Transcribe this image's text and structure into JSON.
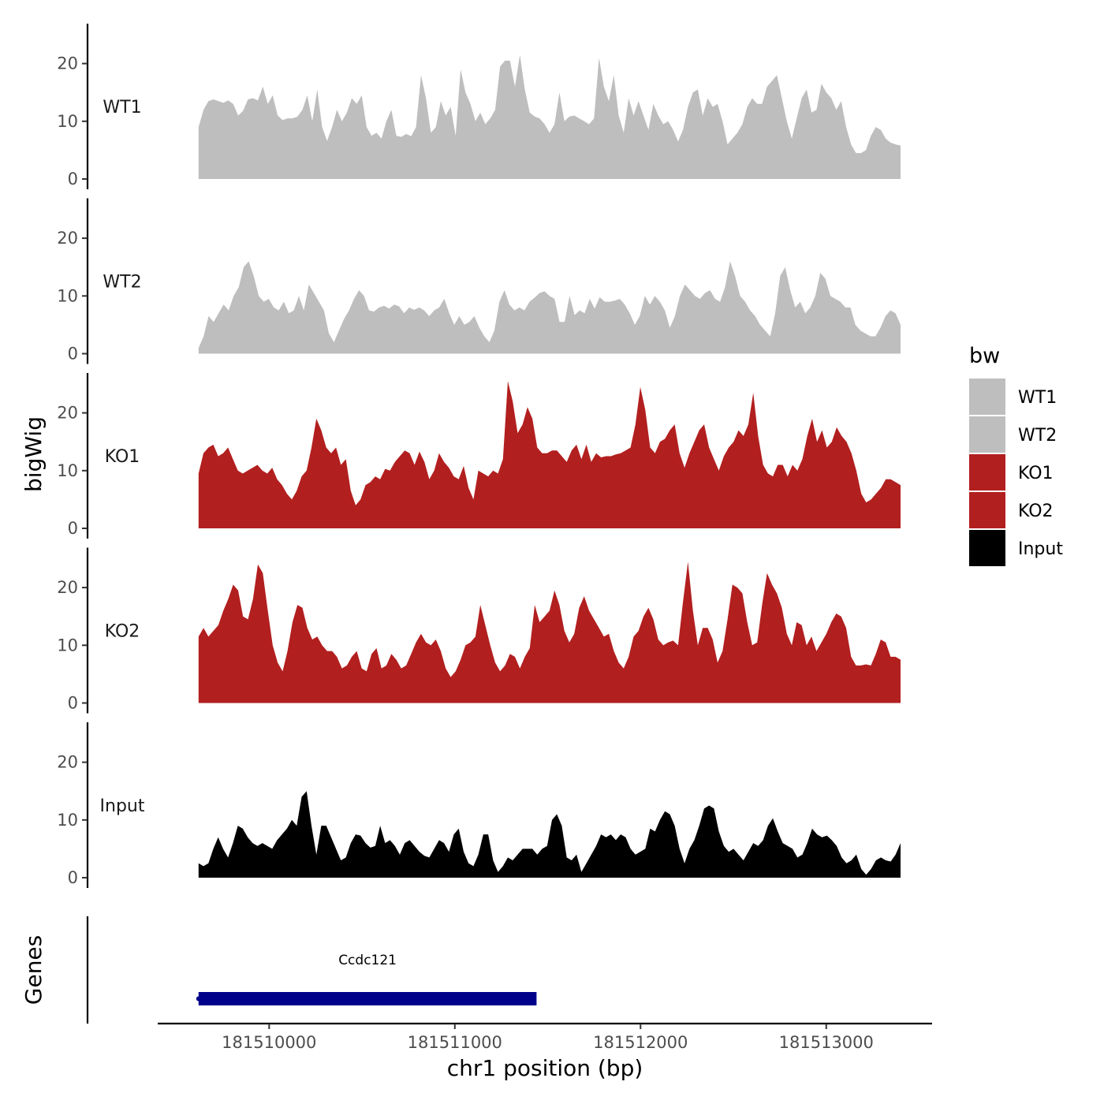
{
  "chart_data": {
    "type": "area",
    "ylabel": "bigWig",
    "xlabel": "chr1 position (bp)",
    "xlim": [
      181509400,
      181513570
    ],
    "x_range": [
      181509620,
      181513400
    ],
    "ylim": [
      0,
      27
    ],
    "y_ticks": [
      0,
      10,
      20
    ],
    "x_ticks": [
      181510000,
      181511000,
      181512000,
      181513000
    ],
    "x_tick_labels": [
      "181510000",
      "181511000",
      "181512000",
      "181513000"
    ],
    "genes_label": "Genes",
    "legend": {
      "title": "bw",
      "entries": [
        {
          "label": "WT1",
          "color": "#bebebe"
        },
        {
          "label": "WT2",
          "color": "#bebebe"
        },
        {
          "label": "KO1",
          "color": "#b21f1f"
        },
        {
          "label": "KO2",
          "color": "#b21f1f"
        },
        {
          "label": "Input",
          "color": "#000000"
        }
      ]
    },
    "series": [
      {
        "name": "WT1",
        "color": "#bebebe",
        "values": [
          9,
          12,
          13.5,
          13.8,
          13.5,
          13.2,
          13.6,
          13,
          11,
          11.8,
          13.8,
          14,
          13.6,
          16,
          13,
          14.5,
          11,
          10.2,
          10.5,
          10.5,
          10.8,
          12,
          14.5,
          10,
          15.5,
          9,
          6.6,
          9,
          12,
          10,
          11.5,
          14,
          13,
          14.5,
          9,
          7.5,
          8,
          7,
          10,
          12,
          7.5,
          7.3,
          7.8,
          7.4,
          9,
          18,
          14,
          8,
          9,
          13.5,
          11,
          12.5,
          7.5,
          19,
          15,
          13,
          10,
          11.5,
          9.5,
          10.5,
          12,
          19.5,
          20.5,
          20.5,
          16,
          21.5,
          15.5,
          11.5,
          10.8,
          10.5,
          9.5,
          8,
          9.5,
          15,
          10,
          10.8,
          11,
          10.5,
          10,
          9.5,
          10.5,
          21,
          16,
          13.5,
          18,
          11,
          8,
          14,
          11,
          13.5,
          11,
          8.5,
          13,
          11,
          9.5,
          10,
          8.5,
          6.5,
          8.5,
          12.5,
          15,
          15.5,
          11,
          14,
          12.5,
          13,
          10,
          6,
          7,
          8,
          9.5,
          12.5,
          14,
          13,
          13,
          16,
          17,
          18,
          14,
          10,
          7,
          10.5,
          14,
          15.5,
          11.5,
          12,
          16.5,
          15,
          14,
          12,
          13.5,
          9,
          6,
          4.5,
          4.5,
          5,
          7.5,
          9,
          8.5,
          7,
          6.3,
          6,
          5.8
        ]
      },
      {
        "name": "WT2",
        "color": "#bebebe",
        "values": [
          1,
          3,
          6.5,
          5.5,
          7,
          8.5,
          7.5,
          10,
          11.5,
          15,
          16,
          13.5,
          10,
          9,
          9.5,
          8,
          7.5,
          9,
          7,
          7.5,
          10,
          7.5,
          12,
          10.5,
          9,
          7.5,
          3.5,
          2,
          4,
          6,
          7.5,
          9.5,
          11,
          10,
          7.5,
          7.3,
          8,
          8.3,
          7.8,
          8.5,
          8.2,
          7,
          8,
          7.6,
          8,
          7.5,
          6.5,
          7.5,
          8,
          9.5,
          7,
          5,
          6.5,
          5,
          5.5,
          6.5,
          4.5,
          3,
          2,
          4,
          9,
          11,
          8.5,
          7.5,
          8,
          7.5,
          9,
          9.7,
          10.5,
          10.8,
          10,
          9.5,
          5.5,
          5.5,
          10,
          6.7,
          7.5,
          7,
          9.5,
          7.8,
          9.8,
          9,
          9,
          9.2,
          9.5,
          8.5,
          7,
          5,
          6.5,
          10,
          8.5,
          10,
          9,
          7.5,
          4.5,
          6.5,
          10,
          12,
          11,
          10,
          9.5,
          10.5,
          11,
          9.5,
          9,
          11.5,
          16,
          13.5,
          10,
          9,
          7.5,
          6.5,
          5,
          4,
          3,
          7,
          13.5,
          15,
          11,
          8,
          9,
          7,
          8,
          10,
          14,
          13,
          10,
          9.5,
          9,
          8,
          8,
          5,
          4,
          3.5,
          3,
          3,
          4.5,
          6.5,
          7.5,
          7,
          5
        ]
      },
      {
        "name": "KO1",
        "color": "#b21f1f",
        "values": [
          9.5,
          13,
          14,
          14.5,
          12.5,
          13,
          14,
          12,
          10,
          9.5,
          10,
          10.5,
          11,
          10,
          9.5,
          10.5,
          8.5,
          7.5,
          6,
          5,
          6.5,
          9,
          10,
          14,
          19,
          17,
          14,
          13,
          14,
          11,
          12,
          6.5,
          4,
          5,
          7.5,
          8,
          9,
          8.5,
          10.3,
          10,
          11.5,
          12.5,
          13.5,
          13,
          11,
          13.3,
          11.5,
          8.5,
          10,
          13,
          11.5,
          10.5,
          9,
          8.5,
          10.8,
          7,
          5,
          10,
          9.5,
          9,
          10,
          9.5,
          12,
          25.5,
          22,
          16.5,
          18,
          21,
          19,
          14,
          13,
          13,
          13.5,
          13.5,
          12.5,
          11.5,
          13.5,
          14.5,
          12,
          14.5,
          11.5,
          13,
          12.3,
          12.5,
          12.5,
          12.8,
          13,
          13.5,
          14,
          18,
          24.5,
          20.5,
          14,
          13,
          15,
          15.5,
          17,
          18,
          13,
          10.5,
          13,
          15,
          17,
          18,
          14,
          12,
          10,
          12.5,
          14,
          15,
          17,
          16,
          18,
          23.5,
          16,
          11,
          9.5,
          9,
          11,
          11,
          9,
          11,
          10,
          12,
          16,
          19,
          15,
          17,
          14,
          15,
          17.5,
          16,
          15,
          13,
          10,
          6,
          4.5,
          5,
          6,
          7,
          8.5,
          8.5,
          8,
          7.5
        ]
      },
      {
        "name": "KO2",
        "color": "#b21f1f",
        "values": [
          11.5,
          13,
          11.5,
          12.5,
          13.5,
          16,
          18,
          20.5,
          19.5,
          15,
          14.5,
          18,
          24,
          22.5,
          16,
          10,
          7,
          5.5,
          9,
          14,
          17,
          16.5,
          13,
          11,
          11.5,
          10,
          9,
          9,
          8,
          6,
          6.5,
          8,
          9,
          6,
          5.5,
          8.5,
          9.5,
          6,
          6.5,
          8.5,
          7.5,
          6,
          6.5,
          8.5,
          10.5,
          12,
          10.5,
          10,
          11,
          9,
          6,
          4.5,
          5.5,
          7.5,
          10,
          10.5,
          11.5,
          17,
          13.5,
          10,
          7,
          5.5,
          6.5,
          8.5,
          8,
          6,
          8,
          9.5,
          17,
          14,
          15,
          16,
          19.5,
          17,
          12.5,
          10.5,
          12,
          16.5,
          18.5,
          16,
          14.5,
          13,
          11.5,
          12,
          9,
          7,
          6,
          8,
          11.5,
          12.5,
          15,
          16.5,
          14.5,
          11,
          10,
          10.5,
          10.8,
          10,
          17.5,
          24.5,
          16,
          10,
          13,
          13,
          11,
          7,
          9,
          14.5,
          20.5,
          20,
          19,
          14,
          10,
          10.5,
          17,
          22.5,
          20.5,
          19,
          16.5,
          12,
          10,
          14,
          13.5,
          10,
          11.5,
          9,
          10.5,
          12,
          14,
          15.5,
          15,
          13,
          8,
          6.5,
          6.5,
          6.7,
          6.5,
          8.5,
          11,
          10.5,
          8,
          8,
          7.5
        ]
      },
      {
        "name": "Input",
        "color": "#000000",
        "values": [
          2.5,
          2,
          2.5,
          5,
          7,
          5,
          3.5,
          6,
          9,
          8.5,
          7,
          6,
          5.5,
          6,
          5.5,
          5,
          6.5,
          7.5,
          8.5,
          10,
          9,
          14,
          15,
          9,
          4,
          9,
          9,
          7,
          5,
          3,
          3.5,
          6,
          7.5,
          7.3,
          6,
          5.2,
          5.5,
          9,
          6,
          6.5,
          5.5,
          4,
          6,
          6.5,
          5.5,
          4.5,
          3.8,
          3.5,
          5,
          6.5,
          6,
          4.5,
          7.5,
          8.5,
          4.5,
          2.5,
          2,
          4,
          7.5,
          7.5,
          3,
          1,
          2,
          3.5,
          3,
          4,
          5,
          5,
          5,
          4,
          5,
          5.5,
          10,
          11,
          9,
          3.5,
          3,
          4,
          1,
          2.5,
          4,
          5.5,
          7.5,
          7,
          7.5,
          6.5,
          7.5,
          7,
          5,
          4,
          4.5,
          5,
          8.5,
          8,
          10,
          11.5,
          11,
          9,
          5,
          2.5,
          5,
          6.5,
          9,
          12,
          12.5,
          12,
          8,
          5.5,
          4.5,
          5,
          4,
          3,
          4.5,
          6,
          5.5,
          6.5,
          9,
          10.3,
          8,
          6,
          5.5,
          5,
          3.5,
          4,
          6,
          8.5,
          7.5,
          7,
          7.3,
          6.5,
          5.5,
          3.5,
          2.5,
          3,
          4,
          1.5,
          0.5,
          1.5,
          3,
          3.5,
          3,
          2.8,
          4,
          6
        ]
      }
    ],
    "genes": [
      {
        "name": "Ccdc121",
        "start": 181509620,
        "end": 181511440,
        "color": "#00008b",
        "strand": "-"
      }
    ]
  }
}
